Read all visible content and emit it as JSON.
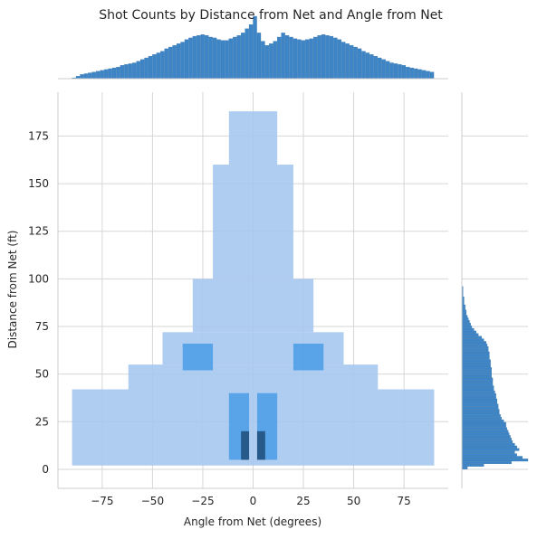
{
  "chart_data": {
    "type": "heatmap",
    "title": "Shot Counts by Distance from Net and Angle from Net",
    "xlabel": "Angle from Net (degrees)",
    "ylabel": "Distance from Net (ft)",
    "xlim": [
      -97,
      97
    ],
    "ylim": [
      -10,
      198
    ],
    "xticks": [
      -75,
      -50,
      -25,
      0,
      25,
      50,
      75
    ],
    "yticks": [
      0,
      25,
      50,
      75,
      100,
      125,
      150,
      175
    ],
    "grid": true,
    "colors": {
      "low": "#a6c8f0",
      "mid": "#4a9be6",
      "high": "#1f4e79",
      "marginal": "#3d85c6",
      "marginal_light": "#8fb8e0"
    },
    "heatmap_bins": [
      {
        "angle_range": [
          -90,
          90
        ],
        "distance_range": [
          2,
          42
        ],
        "intensity": "low"
      },
      {
        "angle_range": [
          -62,
          62
        ],
        "distance_range": [
          42,
          55
        ],
        "intensity": "low"
      },
      {
        "angle_range": [
          -45,
          45
        ],
        "distance_range": [
          55,
          72
        ],
        "intensity": "low"
      },
      {
        "angle_range": [
          -30,
          30
        ],
        "distance_range": [
          72,
          100
        ],
        "intensity": "low"
      },
      {
        "angle_range": [
          -20,
          20
        ],
        "distance_range": [
          100,
          160
        ],
        "intensity": "low"
      },
      {
        "angle_range": [
          -12,
          12
        ],
        "distance_range": [
          160,
          188
        ],
        "intensity": "low"
      },
      {
        "angle_range": [
          -35,
          -20
        ],
        "distance_range": [
          52,
          66
        ],
        "intensity": "mid"
      },
      {
        "angle_range": [
          20,
          35
        ],
        "distance_range": [
          52,
          66
        ],
        "intensity": "mid"
      },
      {
        "angle_range": [
          -12,
          -2
        ],
        "distance_range": [
          5,
          40
        ],
        "intensity": "mid"
      },
      {
        "angle_range": [
          2,
          12
        ],
        "distance_range": [
          5,
          40
        ],
        "intensity": "mid"
      },
      {
        "angle_range": [
          -6,
          -2
        ],
        "distance_range": [
          5,
          20
        ],
        "intensity": "high"
      },
      {
        "angle_range": [
          2,
          6
        ],
        "distance_range": [
          5,
          20
        ],
        "intensity": "high"
      }
    ],
    "x_marginal": {
      "x_range": [
        -90,
        90
      ],
      "counts": [
        1,
        3,
        5,
        6,
        7,
        8,
        9,
        10,
        11,
        12,
        13,
        14,
        16,
        17,
        18,
        19,
        21,
        23,
        25,
        27,
        29,
        31,
        33,
        36,
        38,
        40,
        42,
        44,
        47,
        49,
        51,
        52,
        53,
        52,
        50,
        49,
        47,
        46,
        46,
        48,
        50,
        52,
        55,
        60,
        65,
        75,
        55,
        45,
        40,
        42,
        45,
        50,
        55,
        52,
        50,
        48,
        47,
        46,
        47,
        48,
        50,
        52,
        53,
        52,
        51,
        49,
        47,
        44,
        42,
        40,
        38,
        36,
        33,
        31,
        29,
        27,
        25,
        23,
        21,
        19,
        18,
        17,
        16,
        14,
        13,
        12,
        11,
        10,
        9,
        8
      ]
    },
    "y_marginal": {
      "y_range": [
        0,
        96
      ],
      "counts": [
        5,
        20,
        45,
        60,
        55,
        50,
        48,
        52,
        50,
        48,
        46,
        45,
        44,
        43,
        42,
        41,
        40,
        40,
        38,
        36,
        35,
        34,
        34,
        33,
        33,
        32,
        32,
        31,
        31,
        30,
        29,
        29,
        28,
        28,
        28,
        27,
        27,
        27,
        27,
        26,
        26,
        26,
        25,
        25,
        25,
        24,
        24,
        23,
        22,
        20,
        18,
        15,
        13,
        11,
        9,
        8,
        7,
        6,
        5,
        4,
        4,
        3,
        3,
        2,
        2,
        2,
        1,
        1,
        1,
        1
      ]
    }
  }
}
